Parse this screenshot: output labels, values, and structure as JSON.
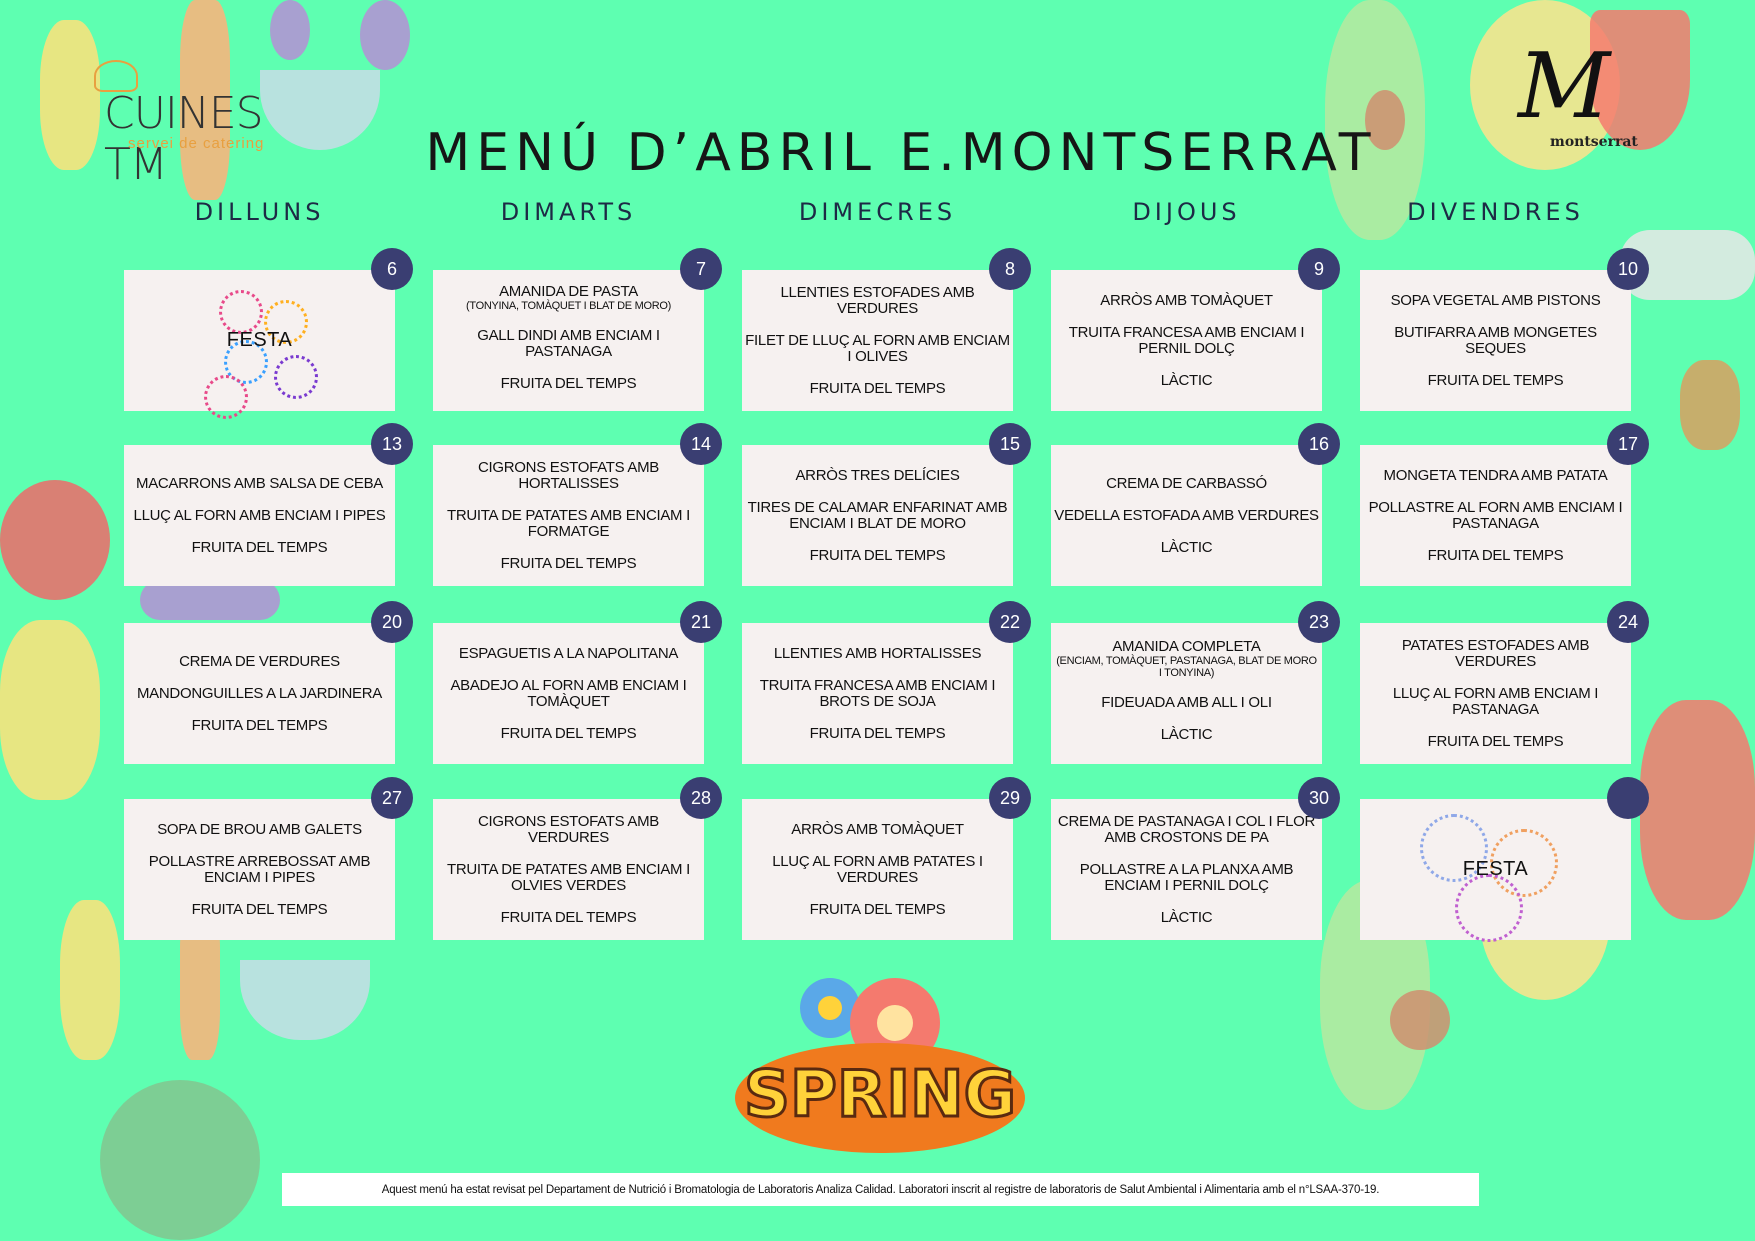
{
  "title": "MENÚ D’ABRIL E.MONTSERRAT",
  "logos": {
    "left": {
      "name": "CUINES TM",
      "subtitle": "servei de catering"
    },
    "right": {
      "mark": "M",
      "name": "montserrat"
    },
    "spring": "SPRING"
  },
  "weekdays": [
    "DILLUNS",
    "DIMARTS",
    "DIMECRES",
    "DIJOUS",
    "DIVENDRES"
  ],
  "weeks": [
    {
      "days": [
        {
          "date": "6",
          "festa": "FESTA"
        },
        {
          "date": "7",
          "dishes": [
            {
              "name": "AMANIDA DE PASTA",
              "note": "(TONYINA, TOMÀQUET I BLAT DE MORO)"
            },
            {
              "name": "GALL DINDI AMB ENCIAM I PASTANAGA"
            },
            {
              "name": "FRUITA DEL TEMPS"
            }
          ]
        },
        {
          "date": "8",
          "dishes": [
            {
              "name": "LLENTIES ESTOFADES AMB VERDURES"
            },
            {
              "name": "FILET DE LLUÇ AL FORN AMB ENCIAM I OLIVES"
            },
            {
              "name": "FRUITA DEL TEMPS"
            }
          ]
        },
        {
          "date": "9",
          "dishes": [
            {
              "name": "ARRÒS AMB TOMÀQUET"
            },
            {
              "name": "TRUITA FRANCESA AMB ENCIAM I PERNIL DOLÇ"
            },
            {
              "name": "LÀCTIC"
            }
          ]
        },
        {
          "date": "10",
          "dishes": [
            {
              "name": "SOPA VEGETAL AMB PISTONS"
            },
            {
              "name": "BUTIFARRA AMB MONGETES SEQUES"
            },
            {
              "name": "FRUITA DEL TEMPS"
            }
          ]
        }
      ]
    },
    {
      "days": [
        {
          "date": "13",
          "dishes": [
            {
              "name": "MACARRONS AMB SALSA DE CEBA"
            },
            {
              "name": "LLUÇ AL FORN AMB ENCIAM I PIPES"
            },
            {
              "name": "FRUITA DEL TEMPS"
            }
          ]
        },
        {
          "date": "14",
          "dishes": [
            {
              "name": "CIGRONS ESTOFATS AMB HORTALISSES"
            },
            {
              "name": "TRUITA DE PATATES AMB ENCIAM I FORMATGE"
            },
            {
              "name": "FRUITA DEL TEMPS"
            }
          ]
        },
        {
          "date": "15",
          "dishes": [
            {
              "name": "ARRÒS TRES DELÍCIES"
            },
            {
              "name": "TIRES DE CALAMAR ENFARINAT AMB ENCIAM I BLAT DE MORO"
            },
            {
              "name": "FRUITA DEL TEMPS"
            }
          ]
        },
        {
          "date": "16",
          "dishes": [
            {
              "name": "CREMA DE CARBASSÓ"
            },
            {
              "name": "VEDELLA ESTOFADA AMB VERDURES"
            },
            {
              "name": "LÀCTIC"
            }
          ]
        },
        {
          "date": "17",
          "dishes": [
            {
              "name": "MONGETA TENDRA AMB PATATA"
            },
            {
              "name": "POLLASTRE AL FORN AMB ENCIAM I PASTANAGA"
            },
            {
              "name": "FRUITA DEL TEMPS"
            }
          ]
        }
      ]
    },
    {
      "days": [
        {
          "date": "20",
          "dishes": [
            {
              "name": "CREMA DE VERDURES"
            },
            {
              "name": "MANDONGUILLES A LA JARDINERA"
            },
            {
              "name": "FRUITA DEL TEMPS"
            }
          ]
        },
        {
          "date": "21",
          "dishes": [
            {
              "name": "ESPAGUETIS A LA NAPOLITANA"
            },
            {
              "name": "ABADEJO AL FORN AMB ENCIAM I TOMÀQUET"
            },
            {
              "name": "FRUITA DEL TEMPS"
            }
          ]
        },
        {
          "date": "22",
          "dishes": [
            {
              "name": "LLENTIES AMB HORTALISSES"
            },
            {
              "name": "TRUITA FRANCESA AMB ENCIAM I BROTS DE SOJA"
            },
            {
              "name": "FRUITA DEL TEMPS"
            }
          ]
        },
        {
          "date": "23",
          "dishes": [
            {
              "name": "AMANIDA COMPLETA",
              "note": "(ENCIAM, TOMÀQUET, PASTANAGA, BLAT DE MORO I TONYINA)"
            },
            {
              "name": "FIDEUADA AMB ALL I OLI"
            },
            {
              "name": "LÀCTIC"
            }
          ]
        },
        {
          "date": "24",
          "dishes": [
            {
              "name": "PATATES ESTOFADES AMB VERDURES"
            },
            {
              "name": "LLUÇ AL FORN AMB ENCIAM I PASTANAGA"
            },
            {
              "name": "FRUITA DEL TEMPS"
            }
          ]
        }
      ]
    },
    {
      "days": [
        {
          "date": "27",
          "dishes": [
            {
              "name": "SOPA DE BROU AMB GALETS"
            },
            {
              "name": "POLLASTRE ARREBOSSAT AMB ENCIAM I PIPES"
            },
            {
              "name": "FRUITA DEL TEMPS"
            }
          ]
        },
        {
          "date": "28",
          "dishes": [
            {
              "name": "CIGRONS ESTOFATS AMB VERDURES"
            },
            {
              "name": "TRUITA DE PATATES AMB ENCIAM I OLVIES VERDES"
            },
            {
              "name": "FRUITA DEL TEMPS"
            }
          ]
        },
        {
          "date": "29",
          "dishes": [
            {
              "name": "ARRÒS AMB TOMÀQUET"
            },
            {
              "name": "LLUÇ AL FORN AMB PATATES I VERDURES"
            },
            {
              "name": "FRUITA DEL TEMPS"
            }
          ]
        },
        {
          "date": "30",
          "dishes": [
            {
              "name": "CREMA DE PASTANAGA I COL I FLOR AMB CROSTONS DE PA"
            },
            {
              "name": "POLLASTRE A LA PLANXA AMB ENCIAM I PERNIL DOLÇ"
            },
            {
              "name": "LÀCTIC"
            }
          ]
        },
        {
          "date": "",
          "festa": "FESTA"
        }
      ]
    }
  ],
  "footer": "Aquest menú ha estat revisat pel Departament de Nutrició i Bromatologia de Laboratoris Analiza Calidad. Laboratori inscrit al registre de laboratoris de Salut Ambiental i Alimentaria amb el n°LSAA-370-19.",
  "colors": {
    "background": "#5effb1",
    "badge": "#3a3e72",
    "card": "#f6f1f0"
  }
}
